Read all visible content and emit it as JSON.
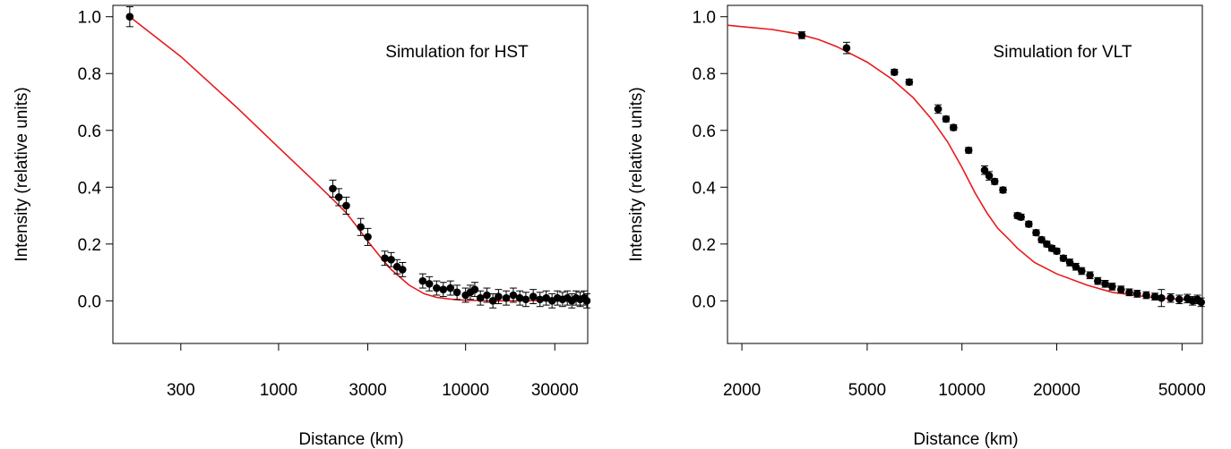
{
  "chart_data": [
    {
      "type": "scatter",
      "annotation": "Simulation for HST",
      "xlabel": "Distance (km)",
      "ylabel": "Intensity (relative units)",
      "x_scale": "log",
      "xlim": [
        130,
        45000
      ],
      "ylim": [
        -0.15,
        1.04
      ],
      "xticks": [
        300,
        1000,
        3000,
        10000,
        30000
      ],
      "xtick_labels": [
        "300",
        "1000",
        "3000",
        "10000",
        "30000"
      ],
      "yticks": [
        0.0,
        0.2,
        0.4,
        0.6,
        0.8,
        1.0
      ],
      "ytick_labels": [
        "0.0",
        "0.2",
        "0.4",
        "0.6",
        "0.8",
        "1.0"
      ],
      "grid": false,
      "line_color": "#e8191c",
      "marker_color": "#000000",
      "points": [
        {
          "x": 160,
          "y": 1.0,
          "err": 0.035
        },
        {
          "x": 1950,
          "y": 0.395,
          "err": 0.03
        },
        {
          "x": 2100,
          "y": 0.365,
          "err": 0.03
        },
        {
          "x": 2300,
          "y": 0.335,
          "err": 0.03
        },
        {
          "x": 2750,
          "y": 0.26,
          "err": 0.03
        },
        {
          "x": 3000,
          "y": 0.225,
          "err": 0.03
        },
        {
          "x": 3700,
          "y": 0.15,
          "err": 0.025
        },
        {
          "x": 4000,
          "y": 0.145,
          "err": 0.025
        },
        {
          "x": 4300,
          "y": 0.12,
          "err": 0.025
        },
        {
          "x": 4600,
          "y": 0.11,
          "err": 0.025
        },
        {
          "x": 5900,
          "y": 0.07,
          "err": 0.025
        },
        {
          "x": 6400,
          "y": 0.06,
          "err": 0.025
        },
        {
          "x": 7000,
          "y": 0.045,
          "err": 0.025
        },
        {
          "x": 7600,
          "y": 0.04,
          "err": 0.025
        },
        {
          "x": 8300,
          "y": 0.045,
          "err": 0.025
        },
        {
          "x": 9000,
          "y": 0.03,
          "err": 0.025
        },
        {
          "x": 10000,
          "y": 0.02,
          "err": 0.025
        },
        {
          "x": 10600,
          "y": 0.03,
          "err": 0.025
        },
        {
          "x": 11200,
          "y": 0.04,
          "err": 0.025
        },
        {
          "x": 12000,
          "y": 0.01,
          "err": 0.025
        },
        {
          "x": 13000,
          "y": 0.02,
          "err": 0.025
        },
        {
          "x": 14000,
          "y": 0.0,
          "err": 0.025
        },
        {
          "x": 15000,
          "y": 0.015,
          "err": 0.025
        },
        {
          "x": 16500,
          "y": 0.01,
          "err": 0.025
        },
        {
          "x": 18000,
          "y": 0.02,
          "err": 0.025
        },
        {
          "x": 19500,
          "y": 0.01,
          "err": 0.025
        },
        {
          "x": 21000,
          "y": 0.005,
          "err": 0.025
        },
        {
          "x": 23000,
          "y": 0.015,
          "err": 0.025
        },
        {
          "x": 25000,
          "y": 0.005,
          "err": 0.025
        },
        {
          "x": 27000,
          "y": 0.01,
          "err": 0.025
        },
        {
          "x": 29000,
          "y": 0.0,
          "err": 0.025
        },
        {
          "x": 31000,
          "y": 0.01,
          "err": 0.025
        },
        {
          "x": 33000,
          "y": 0.005,
          "err": 0.025
        },
        {
          "x": 35000,
          "y": 0.01,
          "err": 0.025
        },
        {
          "x": 37000,
          "y": 0.0,
          "err": 0.025
        },
        {
          "x": 39000,
          "y": 0.01,
          "err": 0.025
        },
        {
          "x": 41000,
          "y": 0.005,
          "err": 0.025
        },
        {
          "x": 43000,
          "y": 0.01,
          "err": 0.025
        },
        {
          "x": 44500,
          "y": 0.0,
          "err": 0.025
        }
      ],
      "line": {
        "x": [
          160,
          300,
          600,
          1000,
          1500,
          2000,
          2300,
          2600,
          3000,
          3500,
          4000,
          5000,
          6000,
          7000,
          8000,
          9000,
          10000,
          12000,
          15000,
          20000,
          30000,
          45000
        ],
        "y": [
          1.0,
          0.86,
          0.68,
          0.54,
          0.43,
          0.35,
          0.31,
          0.265,
          0.21,
          0.155,
          0.11,
          0.055,
          0.025,
          0.012,
          0.007,
          0.004,
          0.002,
          0.001,
          0.0,
          0.001,
          0.0,
          0.001
        ]
      }
    },
    {
      "type": "scatter",
      "annotation": "Simulation for VLT",
      "xlabel": "Distance (km)",
      "ylabel": "Intensity (relative units)",
      "x_scale": "log",
      "xlim": [
        1800,
        58000
      ],
      "ylim": [
        -0.15,
        1.04
      ],
      "xticks": [
        2000,
        5000,
        10000,
        20000,
        50000
      ],
      "xtick_labels": [
        "2000",
        "5000",
        "10000",
        "20000",
        "50000"
      ],
      "yticks": [
        0.0,
        0.2,
        0.4,
        0.6,
        0.8,
        1.0
      ],
      "ytick_labels": [
        "0.0",
        "0.2",
        "0.4",
        "0.6",
        "0.8",
        "1.0"
      ],
      "grid": false,
      "line_color": "#e8191c",
      "marker_color": "#000000",
      "points": [
        {
          "x": 3100,
          "y": 0.935,
          "err": 0.012
        },
        {
          "x": 4300,
          "y": 0.89,
          "err": 0.02
        },
        {
          "x": 6100,
          "y": 0.805,
          "err": 0.01
        },
        {
          "x": 6800,
          "y": 0.77,
          "err": 0.01
        },
        {
          "x": 8400,
          "y": 0.675,
          "err": 0.015
        },
        {
          "x": 8900,
          "y": 0.64,
          "err": 0.01
        },
        {
          "x": 9400,
          "y": 0.61,
          "err": 0.01
        },
        {
          "x": 10500,
          "y": 0.53,
          "err": 0.01
        },
        {
          "x": 11800,
          "y": 0.46,
          "err": 0.015
        },
        {
          "x": 12200,
          "y": 0.44,
          "err": 0.015
        },
        {
          "x": 12700,
          "y": 0.42,
          "err": 0.01
        },
        {
          "x": 13500,
          "y": 0.39,
          "err": 0.01
        },
        {
          "x": 15000,
          "y": 0.3,
          "err": 0.01
        },
        {
          "x": 15400,
          "y": 0.295,
          "err": 0.01
        },
        {
          "x": 16300,
          "y": 0.27,
          "err": 0.01
        },
        {
          "x": 17200,
          "y": 0.24,
          "err": 0.01
        },
        {
          "x": 17900,
          "y": 0.215,
          "err": 0.01
        },
        {
          "x": 18600,
          "y": 0.2,
          "err": 0.01
        },
        {
          "x": 19300,
          "y": 0.185,
          "err": 0.01
        },
        {
          "x": 20000,
          "y": 0.175,
          "err": 0.01
        },
        {
          "x": 21000,
          "y": 0.15,
          "err": 0.01
        },
        {
          "x": 22000,
          "y": 0.135,
          "err": 0.012
        },
        {
          "x": 23000,
          "y": 0.12,
          "err": 0.012
        },
        {
          "x": 24000,
          "y": 0.105,
          "err": 0.012
        },
        {
          "x": 25500,
          "y": 0.09,
          "err": 0.012
        },
        {
          "x": 27000,
          "y": 0.07,
          "err": 0.012
        },
        {
          "x": 28500,
          "y": 0.06,
          "err": 0.012
        },
        {
          "x": 30000,
          "y": 0.05,
          "err": 0.012
        },
        {
          "x": 32000,
          "y": 0.04,
          "err": 0.012
        },
        {
          "x": 34000,
          "y": 0.03,
          "err": 0.012
        },
        {
          "x": 36000,
          "y": 0.025,
          "err": 0.012
        },
        {
          "x": 38500,
          "y": 0.02,
          "err": 0.012
        },
        {
          "x": 41000,
          "y": 0.015,
          "err": 0.012
        },
        {
          "x": 43000,
          "y": 0.01,
          "err": 0.03
        },
        {
          "x": 46000,
          "y": 0.01,
          "err": 0.015
        },
        {
          "x": 49000,
          "y": 0.005,
          "err": 0.015
        },
        {
          "x": 52000,
          "y": 0.008,
          "err": 0.015
        },
        {
          "x": 54000,
          "y": 0.0,
          "err": 0.015
        },
        {
          "x": 56000,
          "y": 0.005,
          "err": 0.015
        },
        {
          "x": 57500,
          "y": -0.005,
          "err": 0.015
        }
      ],
      "line": {
        "x": [
          1800,
          2000,
          2500,
          3000,
          3500,
          4000,
          5000,
          6000,
          7000,
          8000,
          9000,
          10000,
          11000,
          12000,
          13000,
          14000,
          15000,
          17000,
          20000,
          25000,
          30000,
          40000,
          50000,
          58000
        ],
        "y": [
          0.97,
          0.965,
          0.955,
          0.94,
          0.92,
          0.895,
          0.84,
          0.78,
          0.715,
          0.64,
          0.56,
          0.47,
          0.38,
          0.31,
          0.255,
          0.22,
          0.185,
          0.135,
          0.095,
          0.055,
          0.03,
          0.012,
          0.005,
          0.0
        ]
      }
    }
  ]
}
